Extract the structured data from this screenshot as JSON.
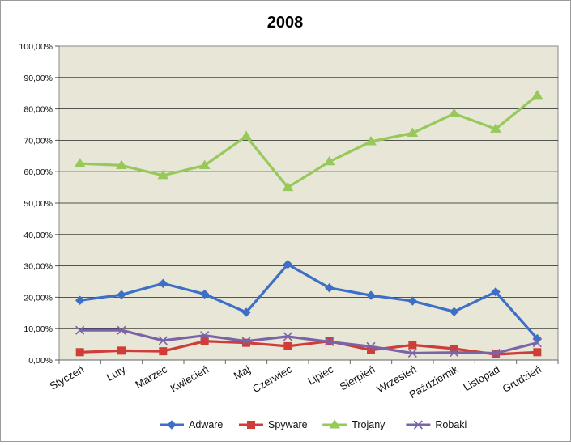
{
  "chart_data": {
    "type": "line",
    "title": "2008",
    "xlabel": "",
    "ylabel": "",
    "ylim": [
      0,
      100
    ],
    "y_ticks": [
      "0,00%",
      "10,00%",
      "20,00%",
      "30,00%",
      "40,00%",
      "50,00%",
      "60,00%",
      "70,00%",
      "80,00%",
      "90,00%",
      "100,00%"
    ],
    "categories": [
      "Styczeń",
      "Luty",
      "Marzec",
      "Kwiecień",
      "Maj",
      "Czerwiec",
      "Lipiec",
      "Sierpień",
      "Wrzesień",
      "Październik",
      "Listopad",
      "Grudzień"
    ],
    "series": [
      {
        "name": "Adware",
        "color": "#3e6fc6",
        "marker": "diamond",
        "values": [
          19.0,
          20.8,
          24.4,
          21.0,
          15.2,
          30.5,
          23.0,
          20.6,
          18.8,
          15.4,
          21.7,
          6.8
        ]
      },
      {
        "name": "Spyware",
        "color": "#d03c37",
        "marker": "square",
        "values": [
          2.5,
          3.0,
          2.8,
          6.0,
          5.5,
          4.4,
          6.0,
          3.2,
          4.8,
          3.6,
          1.8,
          2.5
        ]
      },
      {
        "name": "Trojany",
        "color": "#96c95a",
        "marker": "triangle",
        "values": [
          62.6,
          62.0,
          58.8,
          62.0,
          71.3,
          55.0,
          63.2,
          69.6,
          72.3,
          78.5,
          73.6,
          84.3
        ]
      },
      {
        "name": "Robaki",
        "color": "#7b63a8",
        "marker": "x",
        "values": [
          9.5,
          9.5,
          6.2,
          7.8,
          6.0,
          7.5,
          5.8,
          4.3,
          2.2,
          2.4,
          2.2,
          5.5
        ]
      }
    ],
    "grid": true,
    "legend_position": "bottom",
    "plot_background": "#e7e6d7"
  }
}
